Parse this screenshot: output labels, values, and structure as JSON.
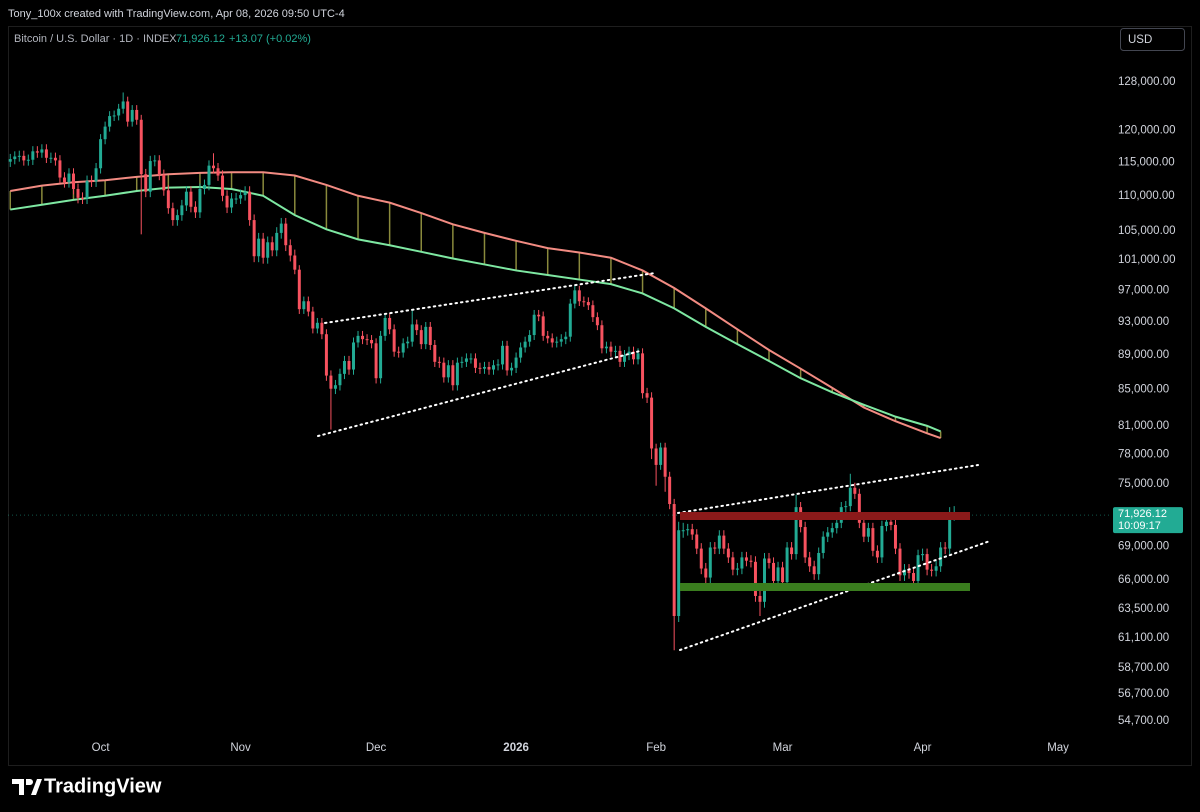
{
  "header": {
    "attribution": "Tony_100x created with TradingView.com, Apr 08, 2026 09:50 UTC-4",
    "symbol": "Bitcoin / U.S. Dollar · 1D · INDEX",
    "change": "+13.07 (+0.02%)",
    "currency": "USD"
  },
  "chart_data": {
    "type": "candlestick",
    "log_scale": true,
    "up_color": "#22ab94",
    "down_color": "#f7525f",
    "ylim": [
      53550,
      137500
    ],
    "yticks": [
      {
        "value": 128000,
        "label": "128,000.00"
      },
      {
        "value": 120000,
        "label": "120,000.00"
      },
      {
        "value": 115000,
        "label": "115,000.00"
      },
      {
        "value": 110000,
        "label": "110,000.00"
      },
      {
        "value": 105000,
        "label": "105,000.00"
      },
      {
        "value": 101000,
        "label": "101,000.00"
      },
      {
        "value": 97000,
        "label": "97,000.00"
      },
      {
        "value": 93000,
        "label": "93,000.00"
      },
      {
        "value": 89000,
        "label": "89,000.00"
      },
      {
        "value": 85000,
        "label": "85,000.00"
      },
      {
        "value": 81000,
        "label": "81,000.00"
      },
      {
        "value": 78000,
        "label": "78,000.00"
      },
      {
        "value": 75000,
        "label": "75,000.00"
      },
      {
        "value": 69000,
        "label": "69,000.00"
      },
      {
        "value": 66000,
        "label": "66,000.00"
      },
      {
        "value": 63500,
        "label": "63,500.00"
      },
      {
        "value": 61100,
        "label": "61,100.00"
      },
      {
        "value": 58700,
        "label": "58,700.00"
      },
      {
        "value": 56700,
        "label": "56,700.00"
      },
      {
        "value": 54700,
        "label": "54,700.00"
      }
    ],
    "xlim": [
      -0.5,
      243.5
    ],
    "xticks": [
      {
        "value": 20,
        "label": "Oct"
      },
      {
        "value": 51,
        "label": "Nov"
      },
      {
        "value": 81,
        "label": "Dec"
      },
      {
        "value": 112,
        "label": "2026"
      },
      {
        "value": 143,
        "label": "Feb"
      },
      {
        "value": 171,
        "label": "Mar"
      },
      {
        "value": 202,
        "label": "Apr"
      },
      {
        "value": 232,
        "label": "May"
      }
    ],
    "open": [
      115100,
      115500,
      115900,
      116000,
      115300,
      115400,
      116700,
      116500,
      117000,
      115700,
      115700,
      115300,
      112700,
      112000,
      113300,
      111000,
      109700,
      109600,
      112200,
      112100,
      114100,
      118600,
      120600,
      122300,
      122400,
      123500,
      124700,
      121400,
      123300,
      121700,
      113200,
      110600,
      115200,
      115300,
      113100,
      110800,
      108200,
      106500,
      107200,
      108600,
      110600,
      108400,
      107600,
      111000,
      111600,
      114500,
      114100,
      113000,
      110000,
      108300,
      109600,
      109600,
      110100,
      110600,
      106500,
      101500,
      103900,
      101300,
      103400,
      102300,
      104700,
      106000,
      103000,
      101600,
      99700,
      94600,
      95600,
      94300,
      92200,
      92900,
      91500,
      86600,
      85100,
      85500,
      86800,
      88300,
      87300,
      90500,
      91300,
      90900,
      90800,
      90400,
      86300,
      91300,
      93500,
      92100,
      89400,
      89300,
      90400,
      90600,
      92700,
      92000,
      90300,
      92400,
      90200,
      88200,
      88100,
      86400,
      87800,
      85500,
      88100,
      88200,
      88600,
      88600,
      87500,
      87400,
      87600,
      87300,
      87800,
      87900,
      90100,
      87200,
      87500,
      88700,
      89900,
      90600,
      91400,
      93900,
      93700,
      91300,
      91000,
      90500,
      90600,
      90900,
      91200,
      95300,
      97000,
      95600,
      95500,
      95100,
      93600,
      92600,
      89800,
      90000,
      89400,
      89500,
      88200,
      89000,
      89400,
      88500,
      89200,
      84600,
      84100,
      78600,
      76900,
      78700,
      75700,
      73000,
      62900,
      70500,
      70500,
      70600,
      70100,
      68800,
      67000,
      66200,
      68900,
      68800,
      70000,
      68800,
      68000,
      66900,
      67000,
      68000,
      67700,
      67600,
      64600,
      64100,
      67900,
      67500,
      65900,
      67100,
      65800,
      68900,
      68300,
      72700,
      70800,
      68000,
      67200,
      66500,
      68400,
      69900,
      70300,
      70700,
      71200,
      72700,
      72800,
      74600,
      74000,
      71200,
      69900,
      70700,
      68600,
      68000,
      70900,
      71300,
      71000,
      68800,
      66400,
      66900,
      66600,
      65900,
      68200,
      68300,
      66900,
      66800,
      67200,
      68900,
      68800,
      71913.05
    ],
    "high": [
      116300,
      116700,
      116800,
      116800,
      116200,
      117500,
      117500,
      117800,
      117800,
      116500,
      116500,
      116100,
      113500,
      114100,
      114100,
      111800,
      110500,
      113000,
      113000,
      114900,
      119400,
      121400,
      123100,
      123200,
      124300,
      126200,
      125500,
      124100,
      124100,
      122500,
      114000,
      116000,
      116100,
      116100,
      113900,
      111600,
      109000,
      108000,
      109400,
      111400,
      111400,
      109200,
      111800,
      112400,
      115300,
      116400,
      114900,
      113800,
      110800,
      110400,
      110400,
      110900,
      111400,
      111400,
      107300,
      104700,
      104700,
      104200,
      104200,
      105500,
      106800,
      106800,
      103800,
      102400,
      100300,
      96200,
      96200,
      94900,
      93500,
      93500,
      92100,
      87200,
      86100,
      87400,
      88900,
      88900,
      91100,
      91900,
      91900,
      91500,
      91400,
      91000,
      91900,
      94100,
      94100,
      92700,
      90000,
      91000,
      91200,
      94500,
      93300,
      92600,
      93000,
      93000,
      90800,
      88800,
      88700,
      88400,
      88400,
      88700,
      88800,
      89200,
      89200,
      89200,
      88100,
      88200,
      88200,
      88400,
      88500,
      90700,
      90700,
      88100,
      89300,
      90500,
      91200,
      92000,
      94500,
      94500,
      94300,
      91900,
      91600,
      91200,
      91500,
      91800,
      95900,
      97600,
      97600,
      96200,
      96100,
      95700,
      94200,
      93200,
      90600,
      90600,
      90100,
      90100,
      89600,
      90000,
      90000,
      89800,
      89800,
      85200,
      84700,
      79100,
      79200,
      79200,
      76200,
      73500,
      71300,
      71200,
      71100,
      71100,
      70600,
      69300,
      67500,
      69400,
      69400,
      70500,
      70500,
      69300,
      68500,
      67500,
      68500,
      68500,
      68200,
      68100,
      65100,
      68400,
      68400,
      68000,
      67600,
      67600,
      69400,
      69400,
      73900,
      73200,
      71300,
      68500,
      67700,
      68900,
      70400,
      70800,
      71200,
      71700,
      73200,
      73300,
      76000,
      75100,
      74500,
      71700,
      71200,
      71200,
      69100,
      71400,
      71800,
      71800,
      71500,
      69300,
      67400,
      67400,
      67100,
      68700,
      68800,
      68800,
      67400,
      67700,
      69400,
      69400,
      72700,
      72800
    ],
    "low": [
      114300,
      114700,
      115100,
      114500,
      114500,
      114600,
      115700,
      115700,
      114900,
      114900,
      114500,
      111900,
      111200,
      111200,
      110200,
      108900,
      108800,
      108800,
      111300,
      111300,
      113300,
      117800,
      119800,
      121500,
      121600,
      122700,
      120600,
      120600,
      120900,
      104500,
      109800,
      109800,
      114400,
      112300,
      110000,
      107400,
      105700,
      105700,
      106400,
      107800,
      107600,
      106800,
      106800,
      110200,
      110800,
      113300,
      112200,
      109200,
      107500,
      107500,
      108800,
      108800,
      109300,
      105700,
      100700,
      100700,
      100500,
      100500,
      101500,
      101500,
      103900,
      102200,
      100800,
      99100,
      94000,
      94000,
      93700,
      91600,
      91600,
      90900,
      86000,
      80600,
      84500,
      84900,
      86200,
      86700,
      86700,
      89900,
      90300,
      90200,
      89800,
      85700,
      85700,
      90700,
      91500,
      88800,
      88700,
      88700,
      89800,
      90000,
      91400,
      89700,
      89700,
      89600,
      87600,
      87500,
      85800,
      85800,
      84900,
      84900,
      87500,
      87600,
      88000,
      86900,
      86800,
      86800,
      86700,
      86700,
      87200,
      87300,
      86600,
      86600,
      86900,
      88100,
      89300,
      90000,
      90800,
      93100,
      90700,
      90400,
      89900,
      89900,
      90000,
      90300,
      90600,
      94700,
      95000,
      94900,
      94500,
      93000,
      92000,
      89200,
      89200,
      88800,
      88800,
      87600,
      87600,
      88400,
      87900,
      87900,
      84000,
      83500,
      77500,
      74800,
      76400,
      74200,
      72500,
      60100,
      62400,
      69800,
      70000,
      69600,
      68300,
      66500,
      65700,
      65700,
      68300,
      68300,
      68300,
      67500,
      66400,
      66400,
      66500,
      67200,
      67100,
      64100,
      62900,
      63600,
      67000,
      65400,
      65400,
      65300,
      65300,
      67800,
      67800,
      70300,
      67500,
      66700,
      66000,
      66000,
      67900,
      69400,
      69800,
      70200,
      70700,
      72200,
      72300,
      73500,
      70700,
      69400,
      69400,
      68100,
      67500,
      67500,
      70400,
      70500,
      68300,
      65900,
      65900,
      66100,
      65400,
      65400,
      67700,
      66400,
      66300,
      66300,
      66700,
      68300,
      68300,
      71400
    ],
    "close": [
      115500,
      115900,
      116000,
      115300,
      115400,
      116700,
      116500,
      117000,
      115700,
      115700,
      115300,
      112700,
      112000,
      113300,
      111000,
      109700,
      109600,
      112200,
      112100,
      114100,
      118600,
      120600,
      122300,
      122400,
      123500,
      124700,
      121400,
      123300,
      121700,
      113200,
      110600,
      115200,
      115300,
      113100,
      110800,
      108200,
      106500,
      107200,
      108600,
      110600,
      108400,
      107600,
      111000,
      111600,
      114500,
      114100,
      113000,
      110000,
      108300,
      109600,
      109600,
      110100,
      110600,
      106500,
      101500,
      103900,
      101300,
      103400,
      102300,
      104700,
      106000,
      103000,
      101600,
      99700,
      94600,
      95600,
      94300,
      92200,
      92900,
      91500,
      86600,
      85100,
      85500,
      86800,
      88300,
      87300,
      90500,
      91300,
      90900,
      90800,
      90400,
      86300,
      91300,
      93500,
      92100,
      89400,
      89300,
      90400,
      90600,
      92700,
      92000,
      90300,
      92400,
      90200,
      88200,
      88100,
      86400,
      87800,
      85500,
      88100,
      88200,
      88600,
      88600,
      87500,
      87400,
      87600,
      87300,
      87800,
      87900,
      90100,
      87200,
      87500,
      88700,
      89900,
      90600,
      91400,
      93900,
      93700,
      91300,
      91000,
      90500,
      90600,
      90900,
      91200,
      95300,
      97000,
      95600,
      95500,
      95100,
      93600,
      92600,
      89800,
      90000,
      89400,
      89500,
      88200,
      89000,
      89400,
      88500,
      89200,
      84600,
      84100,
      78600,
      76900,
      78700,
      75700,
      73000,
      62900,
      70500,
      70500,
      70600,
      70100,
      68800,
      67000,
      66200,
      68900,
      68800,
      70000,
      68800,
      68000,
      66900,
      67000,
      68000,
      67700,
      67600,
      64600,
      64100,
      67900,
      67500,
      65900,
      67100,
      65800,
      68900,
      68300,
      72700,
      70800,
      68000,
      67200,
      66500,
      68400,
      69900,
      70300,
      70700,
      71200,
      72700,
      72800,
      74600,
      74000,
      71200,
      69900,
      70700,
      68600,
      68000,
      70900,
      71300,
      71000,
      68800,
      66400,
      66900,
      66600,
      65900,
      68200,
      68300,
      66900,
      66800,
      67200,
      68900,
      68800,
      71913.05,
      71926.12
    ],
    "series": [
      {
        "color": "#f28b82",
        "x": [
          0,
          7,
          14,
          21,
          28,
          35,
          42,
          49,
          56,
          63,
          70,
          77,
          84,
          91,
          98,
          105,
          112,
          119,
          126,
          133,
          140,
          147,
          154,
          161,
          168,
          175,
          182,
          189,
          196,
          203,
          206
        ],
        "values": [
          110700,
          111500,
          112000,
          112300,
          112800,
          113200,
          113400,
          113500,
          113500,
          113000,
          111600,
          110000,
          109000,
          107500,
          105900,
          104700,
          103600,
          102600,
          102000,
          101300,
          99600,
          97300,
          94700,
          92100,
          89600,
          87400,
          85200,
          83000,
          81500,
          80200,
          79700
        ]
      },
      {
        "color": "#7ee8a2",
        "x": [
          0,
          7,
          14,
          21,
          28,
          35,
          42,
          49,
          56,
          63,
          70,
          77,
          84,
          91,
          98,
          105,
          112,
          119,
          126,
          133,
          140,
          147,
          154,
          161,
          168,
          175,
          182,
          189,
          196,
          203,
          206
        ],
        "values": [
          108000,
          108700,
          109400,
          110000,
          110700,
          111200,
          111300,
          111000,
          110000,
          107200,
          105200,
          103800,
          103000,
          102100,
          101200,
          100400,
          99600,
          99000,
          98400,
          97800,
          96600,
          94700,
          92400,
          90300,
          88300,
          86300,
          84700,
          83300,
          82000,
          81000,
          80400
        ]
      }
    ],
    "fill_color": "#8a8a3c",
    "last_price": {
      "value": 71926.12,
      "label": "71,926.12"
    },
    "countdown": "10:09:17"
  },
  "footer": {
    "logo": "TradingView"
  }
}
